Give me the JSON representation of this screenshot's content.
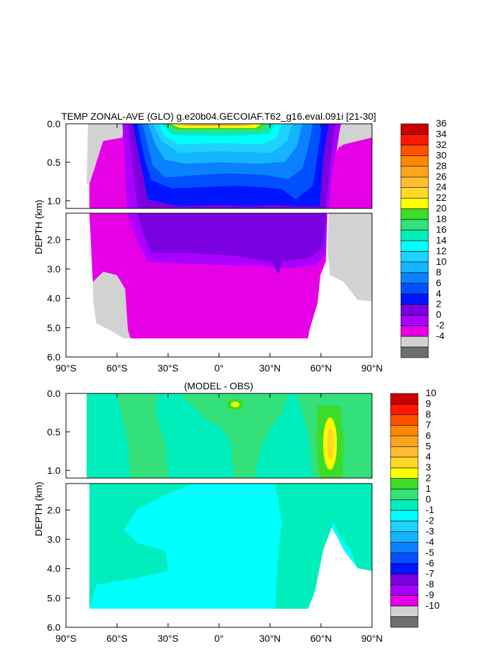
{
  "chart_data": [
    {
      "type": "heatmap",
      "title": "TEMP ZONAL-AVE (GLO) g.e20b04.GECOIAF.T62_g16.eval.091i [21-30]",
      "ylabel": "DEPTH (km)",
      "x_ticks": [
        "90°S",
        "60°S",
        "30°S",
        "0°",
        "30°N",
        "60°N",
        "90°N"
      ],
      "x_tick_values": [
        -90,
        -60,
        -30,
        0,
        30,
        60,
        90
      ],
      "xlim": [
        -90,
        90
      ],
      "y_ticks_upper": [
        "0.0",
        "0.5",
        "1.0"
      ],
      "y_tick_values_upper": [
        0.0,
        0.5,
        1.0
      ],
      "y_ticks_lower": [
        "2.0",
        "3.0",
        "4.0",
        "5.0",
        "6.0"
      ],
      "y_tick_values_lower": [
        2.0,
        3.0,
        4.0,
        5.0,
        6.0
      ],
      "ylim_upper": [
        0,
        1.1
      ],
      "ylim_lower": [
        1.1,
        6.0
      ],
      "colorbar_labels": [
        "36",
        "34",
        "32",
        "30",
        "28",
        "26",
        "24",
        "22",
        "20",
        "18",
        "16",
        "14",
        "12",
        "10",
        "8",
        "6",
        "4",
        "2",
        "0",
        "-2",
        "-4"
      ],
      "colorbar_levels": [
        -4,
        -2,
        0,
        2,
        4,
        6,
        8,
        10,
        12,
        14,
        16,
        18,
        20,
        22,
        24,
        26,
        28,
        30,
        32,
        34,
        36
      ],
      "colors": [
        "#6e6e6e",
        "#d2d2d2",
        "#e600e6",
        "#aa00ff",
        "#7b00e0",
        "#0015ff",
        "#0050ff",
        "#0a82ff",
        "#14b4ff",
        "#1ed2ff",
        "#00ffff",
        "#00eebb",
        "#33e07a",
        "#3cdc28",
        "#ffff00",
        "#ffd82a",
        "#ffbe32",
        "#ffa41e",
        "#ff8700",
        "#ff5200",
        "#ff1800",
        "#c80000"
      ]
    },
    {
      "type": "heatmap",
      "title": "(MODEL - OBS)",
      "ylabel": "DEPTH (km)",
      "x_ticks": [
        "90°S",
        "60°S",
        "30°S",
        "0°",
        "30°N",
        "60°N",
        "90°N"
      ],
      "x_tick_values": [
        -90,
        -60,
        -30,
        0,
        30,
        60,
        90
      ],
      "xlim": [
        -90,
        90
      ],
      "y_ticks_upper": [
        "0.0",
        "0.5",
        "1.0"
      ],
      "y_tick_values_upper": [
        0.0,
        0.5,
        1.0
      ],
      "y_ticks_lower": [
        "2.0",
        "3.0",
        "4.0",
        "5.0",
        "6.0"
      ],
      "y_tick_values_lower": [
        2.0,
        3.0,
        4.0,
        5.0,
        6.0
      ],
      "ylim_upper": [
        0,
        1.1
      ],
      "ylim_lower": [
        1.1,
        6.0
      ],
      "colorbar_labels": [
        "10",
        "9",
        "8",
        "7",
        "6",
        "5",
        "4",
        "3",
        "2",
        "1",
        "0",
        "-1",
        "-2",
        "-3",
        "-4",
        "-5",
        "-6",
        "-7",
        "-8",
        "-9",
        "-10"
      ],
      "colorbar_levels": [
        -10,
        -9,
        -8,
        -7,
        -6,
        -5,
        -4,
        -3,
        -2,
        -1,
        0,
        1,
        2,
        3,
        4,
        5,
        6,
        7,
        8,
        9,
        10
      ],
      "colors": [
        "#6e6e6e",
        "#d2d2d2",
        "#e600e6",
        "#aa00ff",
        "#7b00e0",
        "#0015ff",
        "#0050ff",
        "#0a82ff",
        "#14b4ff",
        "#1ed2ff",
        "#00ffff",
        "#00eebb",
        "#33e07a",
        "#3cdc28",
        "#ffff00",
        "#ffd82a",
        "#ffbe32",
        "#ffa41e",
        "#ff8700",
        "#ff5200",
        "#ff1800",
        "#c80000"
      ]
    }
  ]
}
